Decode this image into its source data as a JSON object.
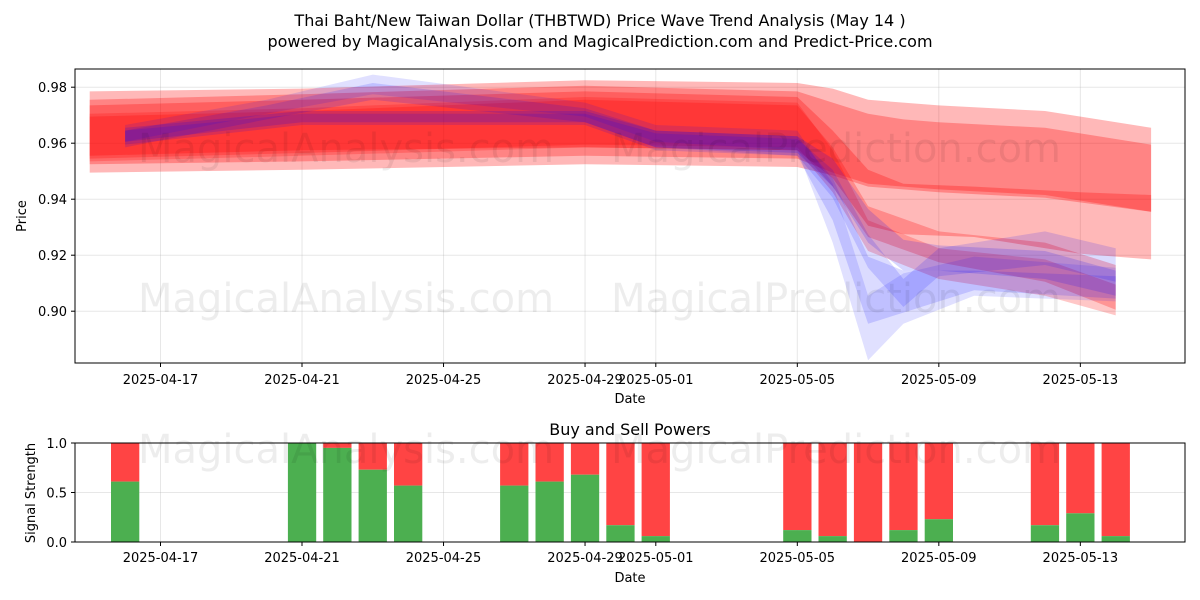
{
  "watermarks": [
    "MagicalAnalysis.com",
    "MagicalPrediction.com"
  ],
  "chart_data": [
    {
      "type": "area",
      "title": "Thai Baht/New Taiwan Dollar (THBTWD) Price Wave Trend Analysis (May 14 )",
      "subtitle": "powered by MagicalAnalysis.com and MagicalPrediction.com and Predict-Price.com",
      "xlabel": "Date",
      "ylabel": "Price",
      "ylim": [
        0.8815,
        0.9865
      ],
      "yticks": [
        0.9,
        0.92,
        0.94,
        0.96,
        0.98
      ],
      "yticklabels": [
        "0.90",
        "0.92",
        "0.94",
        "0.96",
        "0.98"
      ],
      "xlim": [
        "2025-04-14T14:00",
        "2025-05-15T23:00"
      ],
      "xticks": [
        "2025-04-17",
        "2025-04-21",
        "2025-04-25",
        "2025-04-29",
        "2025-05-01",
        "2025-05-05",
        "2025-05-09",
        "2025-05-13"
      ],
      "xticklabels": [
        "2025-04-17",
        "2025-04-21",
        "2025-04-25",
        "2025-04-29",
        "2025-05-01",
        "2025-05-05",
        "2025-05-09",
        "2025-05-13"
      ],
      "grid": true,
      "colors": {
        "red": "#ff0000",
        "blue": "#0000ff"
      },
      "series": [
        {
          "color": "red",
          "opacity": 0.28,
          "x": [
            "2025-04-15",
            "2025-04-21",
            "2025-04-29",
            "2025-05-05",
            "2025-05-06",
            "2025-05-07",
            "2025-05-08",
            "2025-05-09",
            "2025-05-12",
            "2025-05-15"
          ],
          "upper": [
            0.9785,
            0.9795,
            0.9825,
            0.9815,
            0.9795,
            0.9755,
            0.9745,
            0.9735,
            0.9715,
            0.9655
          ],
          "lower": [
            0.9495,
            0.9505,
            0.9525,
            0.9515,
            0.9485,
            0.9445,
            0.9435,
            0.9425,
            0.9405,
            0.9355
          ]
        },
        {
          "color": "red",
          "opacity": 0.28,
          "x": [
            "2025-04-15",
            "2025-04-21",
            "2025-04-29",
            "2025-05-05",
            "2025-05-06",
            "2025-05-07",
            "2025-05-08",
            "2025-05-09",
            "2025-05-12",
            "2025-05-15"
          ],
          "upper": [
            0.9755,
            0.9775,
            0.9805,
            0.9785,
            0.9745,
            0.9705,
            0.9685,
            0.9675,
            0.9655,
            0.9595
          ],
          "lower": [
            0.9525,
            0.9535,
            0.9555,
            0.9545,
            0.9495,
            0.9455,
            0.9445,
            0.9435,
            0.9415,
            0.9355
          ]
        },
        {
          "color": "red",
          "opacity": 0.28,
          "x": [
            "2025-04-15",
            "2025-04-21",
            "2025-04-29",
            "2025-05-05",
            "2025-05-06",
            "2025-05-07",
            "2025-05-08",
            "2025-05-10",
            "2025-05-13",
            "2025-05-15"
          ],
          "upper": [
            0.9735,
            0.9755,
            0.9785,
            0.9765,
            0.9645,
            0.9505,
            0.9455,
            0.9445,
            0.9425,
            0.9415
          ],
          "lower": [
            0.9555,
            0.9575,
            0.9585,
            0.9575,
            0.9475,
            0.9305,
            0.9275,
            0.9265,
            0.9205,
            0.9185
          ]
        },
        {
          "color": "red",
          "opacity": 0.25,
          "x": [
            "2025-04-15",
            "2025-04-21",
            "2025-04-29",
            "2025-05-05",
            "2025-05-06",
            "2025-05-07",
            "2025-05-09",
            "2025-05-12",
            "2025-05-14"
          ],
          "upper": [
            0.9695,
            0.9715,
            0.9755,
            0.9735,
            0.9585,
            0.9375,
            0.9285,
            0.9245,
            0.9165
          ],
          "lower": [
            0.9545,
            0.9565,
            0.9595,
            0.9585,
            0.9445,
            0.9265,
            0.9175,
            0.9105,
            0.9005
          ]
        },
        {
          "color": "red",
          "opacity": 0.22,
          "x": [
            "2025-04-15",
            "2025-04-21",
            "2025-04-29",
            "2025-05-05",
            "2025-05-06",
            "2025-05-07",
            "2025-05-09",
            "2025-05-12",
            "2025-05-14"
          ],
          "upper": [
            0.9705,
            0.9725,
            0.9765,
            0.9745,
            0.9575,
            0.9325,
            0.9225,
            0.9185,
            0.9095
          ],
          "lower": [
            0.9535,
            0.9555,
            0.9585,
            0.9575,
            0.9425,
            0.9215,
            0.9115,
            0.9055,
            0.8985
          ]
        },
        {
          "color": "blue",
          "opacity": 0.12,
          "x": [
            "2025-04-16",
            "2025-04-20",
            "2025-04-23",
            "2025-04-29",
            "2025-05-01",
            "2025-05-05",
            "2025-05-06",
            "2025-05-07",
            "2025-05-08",
            "2025-05-10",
            "2025-05-14"
          ],
          "upper": [
            0.9665,
            0.9755,
            0.9845,
            0.9745,
            0.9665,
            0.9645,
            0.9455,
            0.9055,
            0.9135,
            0.9195,
            0.9155
          ],
          "lower": [
            0.9605,
            0.9705,
            0.9775,
            0.9695,
            0.9605,
            0.9575,
            0.9245,
            0.8825,
            0.8955,
            0.9055,
            0.9035
          ]
        },
        {
          "color": "blue",
          "opacity": 0.14,
          "x": [
            "2025-04-16",
            "2025-04-20",
            "2025-04-23",
            "2025-04-29",
            "2025-05-01",
            "2025-05-05",
            "2025-05-06",
            "2025-05-07",
            "2025-05-08",
            "2025-05-10",
            "2025-05-14"
          ],
          "upper": [
            0.9645,
            0.9735,
            0.9815,
            0.9725,
            0.9645,
            0.9625,
            0.9475,
            0.9195,
            0.9145,
            0.9145,
            0.9125
          ],
          "lower": [
            0.9585,
            0.9685,
            0.9755,
            0.9675,
            0.9585,
            0.9555,
            0.9325,
            0.8955,
            0.8995,
            0.9075,
            0.9045
          ]
        },
        {
          "color": "blue",
          "opacity": 0.14,
          "x": [
            "2025-04-16",
            "2025-04-21",
            "2025-04-29",
            "2025-05-01",
            "2025-05-05",
            "2025-05-06",
            "2025-05-07",
            "2025-05-08",
            "2025-05-09",
            "2025-05-12",
            "2025-05-14"
          ],
          "upper": [
            0.9645,
            0.9705,
            0.9705,
            0.9635,
            0.9615,
            0.9505,
            0.9275,
            0.9115,
            0.9225,
            0.9285,
            0.9225
          ],
          "lower": [
            0.9595,
            0.9665,
            0.9665,
            0.9575,
            0.9555,
            0.9405,
            0.9155,
            0.9015,
            0.9125,
            0.9165,
            0.9105
          ]
        },
        {
          "color": "blue",
          "opacity": 0.16,
          "x": [
            "2025-04-16",
            "2025-04-21",
            "2025-04-29",
            "2025-05-01",
            "2025-05-05",
            "2025-05-06",
            "2025-05-07",
            "2025-05-08",
            "2025-05-09",
            "2025-05-12",
            "2025-05-14"
          ],
          "upper": [
            0.9655,
            0.9715,
            0.9715,
            0.9645,
            0.9625,
            0.9545,
            0.9365,
            0.9255,
            0.9235,
            0.9215,
            0.9145
          ],
          "lower": [
            0.9605,
            0.9675,
            0.9675,
            0.9585,
            0.9565,
            0.9445,
            0.9245,
            0.9145,
            0.9145,
            0.9115,
            0.9055
          ]
        }
      ]
    },
    {
      "type": "bar",
      "title": "Buy and Sell Powers",
      "xlabel": "Date",
      "ylabel": "Signal Strength",
      "ylim": [
        0,
        1.0
      ],
      "yticks": [
        0,
        0.5,
        1.0
      ],
      "yticklabels": [
        "0.0",
        "0.5",
        "1.0"
      ],
      "xlim": [
        "2025-04-14T14:00",
        "2025-05-15T23:00"
      ],
      "xticks": [
        "2025-04-17",
        "2025-04-21",
        "2025-04-25",
        "2025-04-29",
        "2025-05-01",
        "2025-05-05",
        "2025-05-09",
        "2025-05-13"
      ],
      "xticklabels": [
        "2025-04-17",
        "2025-04-21",
        "2025-04-25",
        "2025-04-29",
        "2025-05-01",
        "2025-05-05",
        "2025-05-09",
        "2025-05-13"
      ],
      "grid": true,
      "colors": {
        "buy": "#4caf50",
        "sell": "#ff4444"
      },
      "categories": [
        "2025-04-16",
        "2025-04-21",
        "2025-04-22",
        "2025-04-23",
        "2025-04-24",
        "2025-04-27",
        "2025-04-28",
        "2025-04-29",
        "2025-04-30",
        "2025-05-01",
        "2025-05-05",
        "2025-05-06",
        "2025-05-07",
        "2025-05-08",
        "2025-05-09",
        "2025-05-12",
        "2025-05-13",
        "2025-05-14"
      ],
      "series": [
        {
          "key": "buy",
          "values": [
            0.61,
            1.0,
            0.95,
            0.73,
            0.57,
            0.57,
            0.61,
            0.68,
            0.17,
            0.06,
            0.12,
            0.06,
            0.0,
            0.12,
            0.23,
            0.17,
            0.29,
            0.06
          ]
        },
        {
          "key": "sell",
          "values": [
            0.39,
            0.0,
            0.05,
            0.27,
            0.43,
            0.43,
            0.39,
            0.32,
            0.83,
            0.94,
            0.88,
            0.94,
            1.0,
            0.88,
            0.77,
            0.83,
            0.71,
            0.94
          ]
        }
      ]
    }
  ]
}
